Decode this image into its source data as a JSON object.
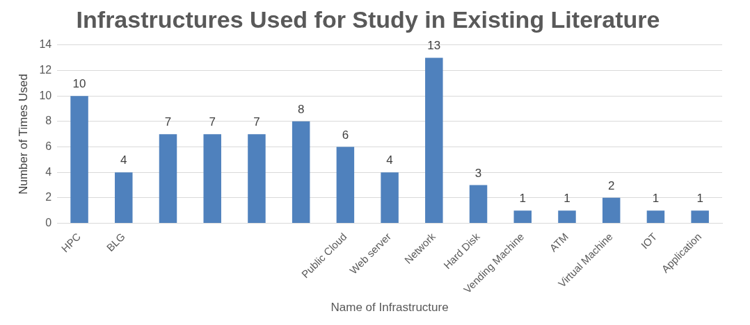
{
  "chart_data": {
    "type": "bar",
    "title": "Infrastructures Used for Study in Existing Literature",
    "xlabel": "Name of Infrastructure",
    "ylabel": "Number of Times Used",
    "categories": [
      "HPC",
      "BLG",
      null,
      null,
      null,
      null,
      "Public Cloud",
      "Web server",
      "Network",
      "Hard Disk",
      "Vending Machine",
      "ATM",
      "Virtual Machine",
      "IOT",
      "Application"
    ],
    "values": [
      10,
      4,
      7,
      7,
      7,
      8,
      6,
      4,
      13,
      3,
      1,
      1,
      2,
      1,
      1
    ],
    "color": "#4f81bd",
    "ylim": [
      0,
      14
    ],
    "yticks": [
      0,
      2,
      4,
      6,
      8,
      10,
      12,
      14
    ],
    "grid": "y",
    "data_labels": true
  }
}
